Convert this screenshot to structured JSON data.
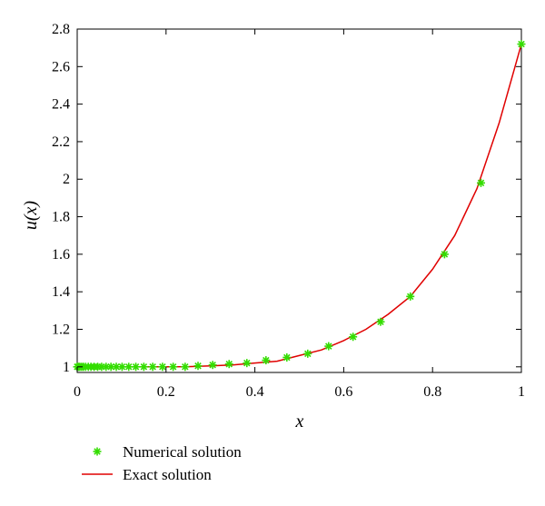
{
  "chart_data": {
    "type": "line",
    "title": "",
    "xlabel": "x",
    "ylabel": "u(x)",
    "xlim": [
      0,
      1
    ],
    "ylim": [
      0.97,
      2.8
    ],
    "x_ticks": [
      "0",
      "0.2",
      "0.4",
      "0.6",
      "0.8",
      "1"
    ],
    "y_ticks": [
      "1",
      "1.2",
      "1.4",
      "1.6",
      "1.8",
      "2",
      "2.2",
      "2.4",
      "2.6",
      "2.8"
    ],
    "grid": false,
    "legend_position": "bottom-left, below plot",
    "series": [
      {
        "name": "Numerical solution",
        "marker": "asterisk",
        "color": "#33dd00",
        "x": [
          0.0,
          0.003,
          0.006,
          0.01,
          0.014,
          0.019,
          0.025,
          0.031,
          0.038,
          0.046,
          0.055,
          0.065,
          0.076,
          0.088,
          0.101,
          0.116,
          0.132,
          0.15,
          0.17,
          0.192,
          0.216,
          0.243,
          0.272,
          0.305,
          0.342,
          0.382,
          0.425,
          0.472,
          0.519,
          0.566,
          0.621,
          0.683,
          0.75,
          0.827,
          0.909,
          1.0
        ],
        "y": [
          1.0,
          1.0,
          1.0,
          1.0,
          1.0,
          1.0,
          1.0,
          1.0,
          1.0,
          1.0,
          1.0,
          1.0,
          1.0,
          1.0,
          1.0,
          1.0,
          1.0,
          1.0,
          1.0,
          1.0,
          1.0,
          1.0,
          1.005,
          1.01,
          1.015,
          1.02,
          1.035,
          1.05,
          1.07,
          1.11,
          1.16,
          1.24,
          1.375,
          1.6,
          1.98,
          2.72
        ]
      },
      {
        "name": "Exact solution",
        "line": "solid",
        "color": "#e00000",
        "x": [
          0.0,
          0.2,
          0.25,
          0.3,
          0.35,
          0.4,
          0.45,
          0.5,
          0.55,
          0.6,
          0.65,
          0.7,
          0.75,
          0.8,
          0.85,
          0.9,
          0.95,
          1.0
        ],
        "y": [
          1.0,
          1.0,
          1.001,
          1.005,
          1.01,
          1.02,
          1.03,
          1.06,
          1.09,
          1.14,
          1.2,
          1.28,
          1.375,
          1.52,
          1.7,
          1.95,
          2.3,
          2.72
        ]
      }
    ]
  }
}
